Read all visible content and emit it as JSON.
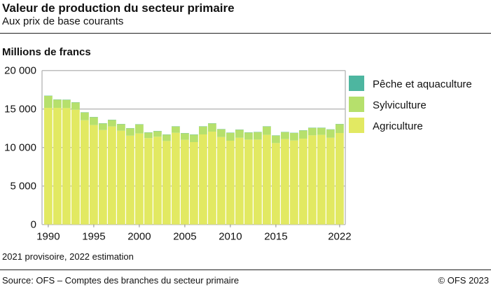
{
  "title": "Valeur de production du secteur primaire",
  "subtitle": "Aux prix de base courants",
  "note": "2021 provisoire, 2022 estimation",
  "source": "Source: OFS – Comptes des branches du secteur primaire",
  "copyright": "© OFS 2023",
  "chart_data": {
    "type": "bar",
    "stacked": true,
    "ylabel": "Millions de francs",
    "ylim": [
      0,
      20000
    ],
    "yticks": [
      0,
      5000,
      10000,
      15000,
      20000
    ],
    "ytick_labels": [
      "0",
      "5 000",
      "10 000",
      "15 000",
      "20 000"
    ],
    "xtick_labels": [
      "1990",
      "1995",
      "2000",
      "2005",
      "2010",
      "2015",
      "2022"
    ],
    "grid": true,
    "legend_position": "right",
    "categories": [
      1990,
      1991,
      1992,
      1993,
      1994,
      1995,
      1996,
      1997,
      1998,
      1999,
      2000,
      2001,
      2002,
      2003,
      2004,
      2005,
      2006,
      2007,
      2008,
      2009,
      2010,
      2011,
      2012,
      2013,
      2014,
      2015,
      2016,
      2017,
      2018,
      2019,
      2020,
      2021,
      2022
    ],
    "series": [
      {
        "name": "Agriculture",
        "color": "#e2e962",
        "values": [
          15150,
          15150,
          15120,
          14900,
          13540,
          12910,
          12270,
          12730,
          12180,
          11540,
          11820,
          11220,
          11400,
          10850,
          11910,
          11000,
          10700,
          11700,
          12060,
          11360,
          10880,
          11270,
          11030,
          11030,
          11640,
          10580,
          11090,
          10910,
          11150,
          11580,
          11640,
          11270,
          11880
        ]
      },
      {
        "name": "Sylviculture",
        "color": "#b6e06c",
        "values": [
          1550,
          1060,
          1070,
          950,
          1010,
          1030,
          850,
          850,
          850,
          950,
          1180,
          720,
          720,
          820,
          820,
          850,
          970,
          1030,
          1060,
          1010,
          1030,
          1030,
          910,
          970,
          1090,
          970,
          910,
          970,
          1060,
          970,
          910,
          1060,
          1150
        ]
      },
      {
        "name": "Pêche et aquaculture",
        "color": "#4db6a0",
        "values": [
          30,
          30,
          30,
          30,
          30,
          30,
          30,
          30,
          30,
          30,
          30,
          30,
          30,
          30,
          30,
          30,
          30,
          30,
          30,
          30,
          30,
          30,
          30,
          30,
          30,
          30,
          30,
          30,
          30,
          30,
          30,
          30,
          30
        ]
      }
    ]
  }
}
